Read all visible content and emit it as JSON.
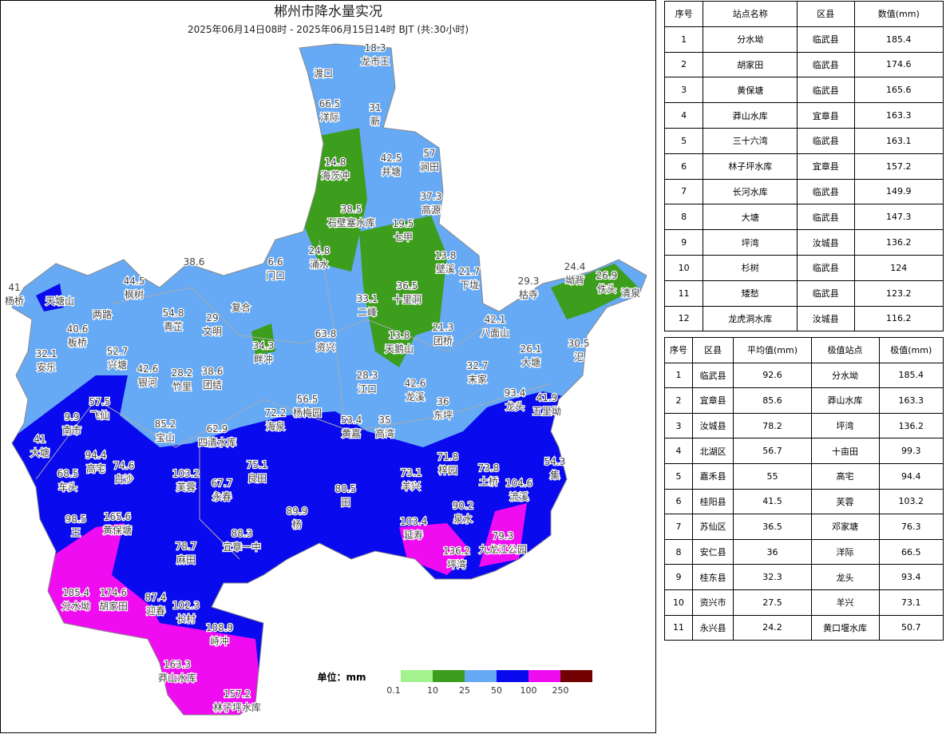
{
  "map": {
    "title": "郴州市降水量实况",
    "subtitle": "2025年06月14日08时 - 2025年06月15日14时 BJT (共:30小时)",
    "legend": {
      "unit_label": "单位：mm",
      "thresholds": [
        0.1,
        10,
        25,
        50,
        100,
        250
      ],
      "colors": [
        "#a3f28f",
        "#3c9e1c",
        "#66aaf5",
        "#0a0aee",
        "#f00cf0",
        "#720000"
      ]
    },
    "stations": [
      {
        "name": "渡口"
      },
      {
        "value": 18.3,
        "name": "龙市王"
      },
      {
        "value": 66.5,
        "name": "洋际"
      },
      {
        "value": 31,
        "name": "新"
      },
      {
        "value": 42.5,
        "name": "井塘"
      },
      {
        "value": 57,
        "name": "涧田"
      },
      {
        "value": 14.8,
        "name": "海茨冲"
      },
      {
        "value": 37.3,
        "name": "高源"
      },
      {
        "value": 38.5,
        "name": "石壁塞水库"
      },
      {
        "value": 19.5,
        "name": "七甲"
      },
      {
        "value": 24.8,
        "name": "涌水"
      },
      {
        "value": 6.6,
        "name": "门口"
      },
      {
        "value": 38.6
      },
      {
        "value": 13.8,
        "name": "壁溪"
      },
      {
        "value": 21.7,
        "name": "下垅"
      },
      {
        "value": 24.4,
        "name": "坳背"
      },
      {
        "value": 26.9,
        "name": "佚头"
      },
      {
        "name": "清泉"
      },
      {
        "value": 29.3,
        "name": "枯寺"
      },
      {
        "value": 36.5,
        "name": "十里洞"
      },
      {
        "value": 33.1,
        "name": "二峰"
      },
      {
        "value": 44.5,
        "name": "枫树"
      },
      {
        "name": "两路"
      },
      {
        "name": "天塘山"
      },
      {
        "value": 41,
        "name": "杨桥"
      },
      {
        "value": 54.8,
        "name": "青芷"
      },
      {
        "name": "复合"
      },
      {
        "value": 29,
        "name": "文明"
      },
      {
        "value": 40.6,
        "name": "板桥"
      },
      {
        "value": 42.1,
        "name": "八面山"
      },
      {
        "value": 13.8,
        "name": "天鹅山"
      },
      {
        "value": 21.3,
        "name": "团桥"
      },
      {
        "value": 63.8,
        "name": "资兴"
      },
      {
        "value": 34.3,
        "name": "畔冲"
      },
      {
        "value": 26.1,
        "name": "大塘"
      },
      {
        "value": 30.5,
        "name": "汜"
      },
      {
        "value": 52.7,
        "name": "兴塘"
      },
      {
        "value": 32.1,
        "name": "安乐"
      },
      {
        "value": 42.6,
        "name": "银河"
      },
      {
        "value": 28.2,
        "name": "竹里"
      },
      {
        "value": 38.6,
        "name": "团结"
      },
      {
        "value": 28.3,
        "name": "江口"
      },
      {
        "value": 32.7,
        "name": "末家"
      },
      {
        "value": 42.6,
        "name": "龙溪"
      },
      {
        "value": 93.4,
        "name": "龙头"
      },
      {
        "value": 41.9,
        "name": "五里坳"
      },
      {
        "value": 57.5,
        "name": "飞仙"
      },
      {
        "value": 56.5,
        "name": "杨梅园"
      },
      {
        "value": 36,
        "name": "东坪"
      },
      {
        "value": 72.2,
        "name": "海泉"
      },
      {
        "value": 62.9,
        "name": "四清水库"
      },
      {
        "value": 85.2,
        "name": "宝山"
      },
      {
        "value": 53.4,
        "name": "黄嘉"
      },
      {
        "value": 35,
        "name": "高湾"
      },
      {
        "value": 9.9,
        "name": "南市"
      },
      {
        "value": 41,
        "name": "大塘"
      },
      {
        "value": 94.4,
        "name": "高宅"
      },
      {
        "value": 74.6,
        "name": "白沙"
      },
      {
        "value": 75.1,
        "name": "良田"
      },
      {
        "value": 71.8,
        "name": "梓园"
      },
      {
        "value": 73.8,
        "name": "土桥"
      },
      {
        "value": 73.1,
        "name": "羊兴"
      },
      {
        "value": 54.3,
        "name": "集"
      },
      {
        "value": 68.5,
        "name": "车头"
      },
      {
        "value": 103.2,
        "name": "芙蓉"
      },
      {
        "value": 67.7,
        "name": "永春"
      },
      {
        "value": 104.6,
        "name": "流溪"
      },
      {
        "value": 80.5,
        "name": "田"
      },
      {
        "value": 90.2,
        "name": "泉水"
      },
      {
        "value": 98.5,
        "name": "王"
      },
      {
        "value": 165.6,
        "name": "黄保塘"
      },
      {
        "value": 89.9,
        "name": "杨"
      },
      {
        "value": 103.4,
        "name": "延寿"
      },
      {
        "value": 88.3,
        "name": "宜章一中"
      },
      {
        "value": 79.3,
        "name": "九龙江公园"
      },
      {
        "value": 78.7,
        "name": "麻田"
      },
      {
        "value": 136.2,
        "name": "坪湾"
      },
      {
        "value": 185.4,
        "name": "分水坳"
      },
      {
        "value": 174.6,
        "name": "胡家田"
      },
      {
        "value": 87.4,
        "name": "迎春"
      },
      {
        "value": 102.3,
        "name": "长村"
      },
      {
        "value": 108.9,
        "name": "峙冲"
      },
      {
        "value": 163.3,
        "name": "莽山水库"
      },
      {
        "value": 157.2,
        "name": "林子坪水库"
      }
    ]
  },
  "station_table": {
    "header": [
      "序号",
      "站点名称",
      "区县",
      "数值(mm)"
    ],
    "rows": [
      [
        1,
        "分水坳",
        "临武县",
        185.4
      ],
      [
        2,
        "胡家田",
        "临武县",
        174.6
      ],
      [
        3,
        "黄保塘",
        "临武县",
        165.6
      ],
      [
        4,
        "莽山水库",
        "宜章县",
        163.3
      ],
      [
        5,
        "三十六湾",
        "临武县",
        163.1
      ],
      [
        6,
        "林子坪水库",
        "宜章县",
        157.2
      ],
      [
        7,
        "长河水库",
        "临武县",
        149.9
      ],
      [
        8,
        "大塘",
        "临武县",
        147.3
      ],
      [
        9,
        "坪湾",
        "汝城县",
        136.2
      ],
      [
        10,
        "杉树",
        "临武县",
        124
      ],
      [
        11,
        "矮愁",
        "临武县",
        123.2
      ],
      [
        12,
        "龙虎洞水库",
        "汝城县",
        116.2
      ]
    ]
  },
  "county_table": {
    "header": [
      "序号",
      "区县",
      "平均值(mm)",
      "极值站点",
      "极值(mm)"
    ],
    "rows": [
      [
        1,
        "临武县",
        92.6,
        "分水坳",
        185.4
      ],
      [
        2,
        "宜章县",
        85.6,
        "莽山水库",
        163.3
      ],
      [
        3,
        "汝城县",
        78.2,
        "坪湾",
        136.2
      ],
      [
        4,
        "北湖区",
        56.7,
        "十亩田",
        99.3
      ],
      [
        5,
        "嘉禾县",
        55,
        "高宅",
        94.4
      ],
      [
        6,
        "桂阳县",
        41.5,
        "芙蓉",
        103.2
      ],
      [
        7,
        "苏仙区",
        36.5,
        "邓家塘",
        76.3
      ],
      [
        8,
        "安仁县",
        36,
        "洋际",
        66.5
      ],
      [
        9,
        "桂东县",
        32.3,
        "龙头",
        93.4
      ],
      [
        10,
        "资兴市",
        27.5,
        "羊兴",
        73.1
      ],
      [
        11,
        "永兴县",
        24.2,
        "黄口堰水库",
        50.7
      ]
    ]
  }
}
